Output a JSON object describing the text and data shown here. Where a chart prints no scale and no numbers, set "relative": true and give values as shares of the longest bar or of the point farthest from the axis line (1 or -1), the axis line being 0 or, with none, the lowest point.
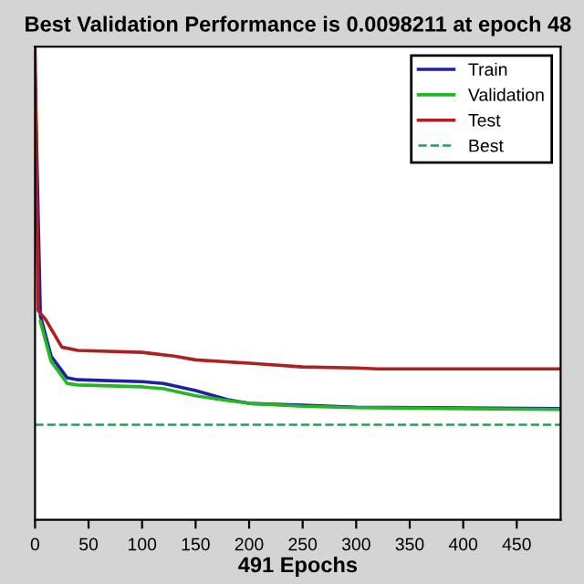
{
  "chart_data": {
    "type": "line",
    "title": "Best Validation Performance is 0.0098211 at epoch 48",
    "xlabel": "491 Epochs",
    "relative": true,
    "xlim": [
      0,
      491
    ],
    "xticks": [
      0,
      50,
      100,
      150,
      200,
      250,
      300,
      350,
      400,
      450
    ],
    "series": [
      {
        "name": "Train",
        "color": "#1f1fa8",
        "x": [
          0,
          5,
          15,
          30,
          40,
          100,
          120,
          150,
          180,
          200,
          250,
          300,
          491
        ],
        "values": [
          0.942,
          0.431,
          0.346,
          0.3,
          0.296,
          0.292,
          0.288,
          0.273,
          0.254,
          0.246,
          0.242,
          0.238,
          0.235
        ]
      },
      {
        "name": "Validation",
        "color": "#22b822",
        "x": [
          5,
          15,
          30,
          40,
          100,
          120,
          150,
          180,
          200,
          250,
          300,
          491
        ],
        "values": [
          0.419,
          0.335,
          0.288,
          0.285,
          0.281,
          0.277,
          0.262,
          0.252,
          0.246,
          0.24,
          0.237,
          0.233
        ]
      },
      {
        "name": "Test",
        "color": "#b02020",
        "x": [
          0,
          3,
          10,
          25,
          40,
          100,
          130,
          150,
          200,
          250,
          300,
          320,
          491
        ],
        "values": [
          1.0,
          0.442,
          0.423,
          0.365,
          0.358,
          0.354,
          0.346,
          0.338,
          0.331,
          0.323,
          0.321,
          0.319,
          0.319
        ]
      }
    ],
    "ref_lines": [
      {
        "axis": "y",
        "value": 0.201,
        "label": "Best",
        "color": "#2a9a5a",
        "line_style": "dashed"
      }
    ],
    "legend": "top right",
    "grid": false
  }
}
